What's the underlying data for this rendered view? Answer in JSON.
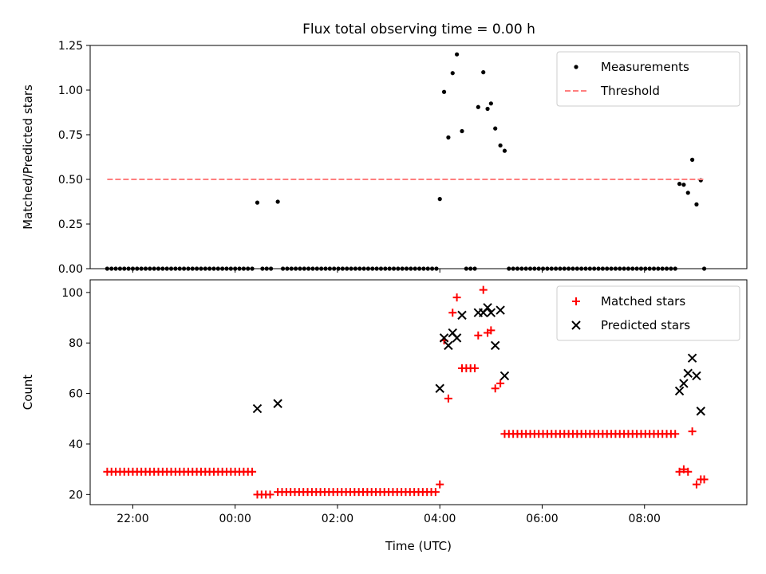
{
  "figure": {
    "title": "Flux total observing time = 0.00 h"
  },
  "chart_data": [
    {
      "type": "scatter",
      "ylabel": "Matched/Predicted stars",
      "ylim": [
        0,
        1.25
      ],
      "yticks": [
        "0.00",
        "0.25",
        "0.50",
        "0.75",
        "1.00",
        "1.25"
      ],
      "xlim": [
        "21:10",
        "10:00"
      ],
      "xticks": [
        "22:00",
        "00:00",
        "02:00",
        "04:00",
        "06:00",
        "08:00"
      ],
      "x_tick_labels_shown": false,
      "legend": {
        "position": "top-right",
        "entries": [
          "Measurements",
          "Threshold"
        ]
      },
      "series": [
        {
          "name": "Measurements",
          "color": "#000000",
          "marker": "dot",
          "points": [
            [
              "00:26",
              0.37
            ],
            [
              "00:50",
              0.375
            ],
            [
              "04:00",
              0.39
            ],
            [
              "04:05",
              0.99
            ],
            [
              "04:10",
              0.735
            ],
            [
              "04:15",
              1.095
            ],
            [
              "04:20",
              1.2
            ],
            [
              "04:26",
              0.77
            ],
            [
              "04:45",
              0.905
            ],
            [
              "04:51",
              1.1
            ],
            [
              "04:56",
              0.895
            ],
            [
              "05:00",
              0.925
            ],
            [
              "05:05",
              0.785
            ],
            [
              "05:11",
              0.69
            ],
            [
              "05:16",
              0.66
            ],
            [
              "08:41",
              0.475
            ],
            [
              "08:46",
              0.47
            ],
            [
              "08:51",
              0.425
            ],
            [
              "08:56",
              0.61
            ],
            [
              "09:01",
              0.36
            ],
            [
              "09:06",
              0.495
            ],
            [
              "09:10",
              0.0
            ]
          ],
          "zero_runs": [
            {
              "start": "21:30",
              "end": "00:20",
              "step_min": 5
            },
            {
              "start": "00:32",
              "end": "00:45",
              "step_min": 5
            },
            {
              "start": "00:56",
              "end": "03:56",
              "step_min": 5
            },
            {
              "start": "04:31",
              "end": "04:41",
              "step_min": 5
            },
            {
              "start": "05:21",
              "end": "08:36",
              "step_min": 5
            }
          ]
        },
        {
          "name": "Threshold",
          "color": "#ff7f7f",
          "style": "dashed",
          "points": [
            [
              "21:30",
              0.5
            ],
            [
              "09:10",
              0.5
            ]
          ]
        }
      ]
    },
    {
      "type": "scatter",
      "xlabel": "Time (UTC)",
      "ylabel": "Count",
      "ylim": [
        16,
        105
      ],
      "yticks": [
        "20",
        "40",
        "60",
        "80",
        "100"
      ],
      "xlim": [
        "21:10",
        "10:00"
      ],
      "xticks": [
        "22:00",
        "00:00",
        "02:00",
        "04:00",
        "06:00",
        "08:00"
      ],
      "legend": {
        "position": "top-right",
        "entries": [
          "Matched stars",
          "Predicted stars"
        ]
      },
      "series": [
        {
          "name": "Matched stars",
          "color": "#ff0000",
          "marker": "plus",
          "points": [
            [
              "04:00",
              24
            ],
            [
              "04:05",
              81
            ],
            [
              "04:10",
              58
            ],
            [
              "04:15",
              92
            ],
            [
              "04:20",
              98
            ],
            [
              "04:26",
              70
            ],
            [
              "04:31",
              70
            ],
            [
              "04:36",
              70
            ],
            [
              "04:41",
              70
            ],
            [
              "04:45",
              83
            ],
            [
              "04:51",
              101
            ],
            [
              "04:56",
              84
            ],
            [
              "05:00",
              85
            ],
            [
              "05:05",
              62
            ],
            [
              "05:11",
              64
            ],
            [
              "08:41",
              29
            ],
            [
              "08:46",
              30
            ],
            [
              "08:51",
              29
            ],
            [
              "08:56",
              45
            ],
            [
              "09:01",
              24
            ],
            [
              "09:06",
              26
            ],
            [
              "09:10",
              26
            ]
          ],
          "flat_runs": [
            {
              "start": "21:30",
              "end": "00:20",
              "step_min": 5,
              "value": 29
            },
            {
              "start": "00:26",
              "end": "00:45",
              "step_min": 5,
              "value": 20
            },
            {
              "start": "00:50",
              "end": "03:56",
              "step_min": 5,
              "value": 21
            },
            {
              "start": "05:16",
              "end": "08:36",
              "step_min": 5,
              "value": 44
            }
          ]
        },
        {
          "name": "Predicted stars",
          "color": "#000000",
          "marker": "x",
          "points": [
            [
              "00:26",
              54
            ],
            [
              "00:50",
              56
            ],
            [
              "04:00",
              62
            ],
            [
              "04:05",
              82
            ],
            [
              "04:10",
              79
            ],
            [
              "04:15",
              84
            ],
            [
              "04:20",
              82
            ],
            [
              "04:26",
              91
            ],
            [
              "04:45",
              92
            ],
            [
              "04:51",
              92
            ],
            [
              "04:56",
              94
            ],
            [
              "05:00",
              92
            ],
            [
              "05:05",
              79
            ],
            [
              "05:11",
              93
            ],
            [
              "05:16",
              67
            ],
            [
              "08:41",
              61
            ],
            [
              "08:46",
              64
            ],
            [
              "08:51",
              68
            ],
            [
              "08:56",
              74
            ],
            [
              "09:01",
              67
            ],
            [
              "09:06",
              53
            ]
          ]
        }
      ]
    }
  ]
}
